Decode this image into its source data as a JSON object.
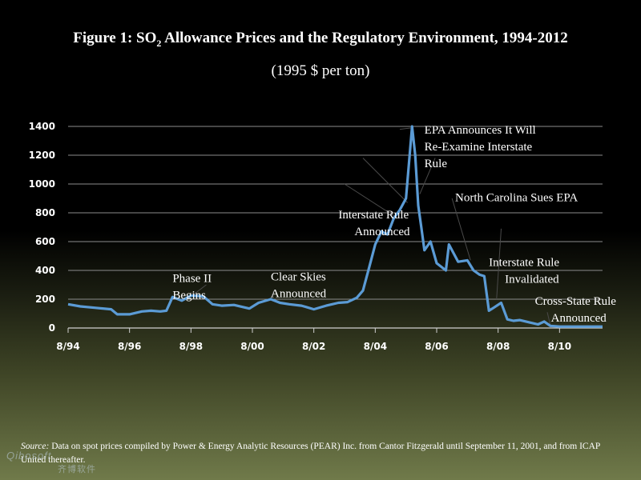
{
  "chart_data": {
    "type": "line",
    "title_prefix": "Figure 1:  SO",
    "title_sub": "2",
    "title_suffix": " Allowance Prices and the Regulatory Environment, 1994-2012",
    "subtitle": "(1995 $ per ton)",
    "xlabel": "",
    "ylabel": "",
    "ylim": [
      0,
      1400
    ],
    "xlim": [
      1994.6,
      2012.0
    ],
    "yticks": [
      0,
      200,
      400,
      600,
      800,
      1000,
      1200,
      1400
    ],
    "xticks": [
      {
        "value": 1994.6,
        "label": "8/94"
      },
      {
        "value": 1996.6,
        "label": "8/96"
      },
      {
        "value": 1998.6,
        "label": "8/98"
      },
      {
        "value": 2000.6,
        "label": "8/00"
      },
      {
        "value": 2002.6,
        "label": "8/02"
      },
      {
        "value": 2004.6,
        "label": "8/04"
      },
      {
        "value": 2006.6,
        "label": "8/06"
      },
      {
        "value": 2008.6,
        "label": "8/08"
      },
      {
        "value": 2010.6,
        "label": "8/10"
      }
    ],
    "grid": true,
    "line_color": "#5b9bd5",
    "series": [
      {
        "x": [
          1994.6,
          1995.0,
          1995.5,
          1996.0,
          1996.2,
          1996.6,
          1997.0,
          1997.3,
          1997.6,
          1997.8,
          1998.0,
          1998.3,
          1998.6,
          1999.0,
          1999.3,
          1999.6,
          2000.0,
          2000.5,
          2000.8,
          2001.2,
          2001.5,
          2001.8,
          2002.2,
          2002.6,
          2003.0,
          2003.4,
          2003.7,
          2004.0,
          2004.2,
          2004.4,
          2004.6,
          2004.8,
          2005.0,
          2005.2,
          2005.4,
          2005.6,
          2005.8,
          2005.9,
          2006.0,
          2006.1,
          2006.2,
          2006.4,
          2006.6,
          2006.9,
          2007.0,
          2007.3,
          2007.6,
          2007.8,
          2008.0,
          2008.15,
          2008.3,
          2008.45,
          2008.7,
          2008.9,
          2009.1,
          2009.3,
          2009.6,
          2009.9,
          2010.1,
          2010.3,
          2010.6,
          2010.9,
          2011.3,
          2011.7,
          2012.0
        ],
        "y": [
          165,
          150,
          140,
          130,
          95,
          95,
          115,
          120,
          115,
          120,
          215,
          190,
          225,
          220,
          165,
          155,
          160,
          135,
          175,
          200,
          175,
          165,
          155,
          130,
          155,
          175,
          180,
          210,
          260,
          420,
          580,
          670,
          650,
          760,
          820,
          900,
          1400,
          1200,
          850,
          700,
          540,
          600,
          450,
          400,
          580,
          460,
          470,
          400,
          370,
          360,
          120,
          140,
          175,
          60,
          50,
          55,
          40,
          25,
          45,
          15,
          10,
          10,
          10,
          10,
          10
        ]
      }
    ],
    "annotations": [
      {
        "lines": [
          "Phase II",
          "Begins"
        ],
        "x": 1998.0,
        "y": 320
      },
      {
        "lines": [
          "Clear Skies",
          "Announced"
        ],
        "x": 2001.2,
        "y": 330
      },
      {
        "lines": [
          "Interstate Rule",
          "Announced"
        ],
        "x": 2003.4,
        "y": 760
      },
      {
        "lines": [
          "EPA Announces It Will",
          "Re-Examine Interstate",
          "Rule"
        ],
        "x": 2006.2,
        "y": 1350
      },
      {
        "lines": [
          "North Carolina Sues EPA"
        ],
        "x": 2007.2,
        "y": 880
      },
      {
        "lines": [
          "Interstate Rule",
          "Invalidated"
        ],
        "x": 2008.3,
        "y": 430
      },
      {
        "lines": [
          "Cross-State Rule",
          "Announced"
        ],
        "x": 2009.8,
        "y": 160
      }
    ]
  },
  "source": {
    "label": "Source:",
    "text": "  Data on spot prices compiled by Power & Energy Analytic Resources (PEAR) Inc. from Cantor Fitzgerald until September 11, 2001, and from ICAP United thereafter."
  },
  "watermark": {
    "text": "Qibosoft",
    "cn": "齐博软件"
  }
}
